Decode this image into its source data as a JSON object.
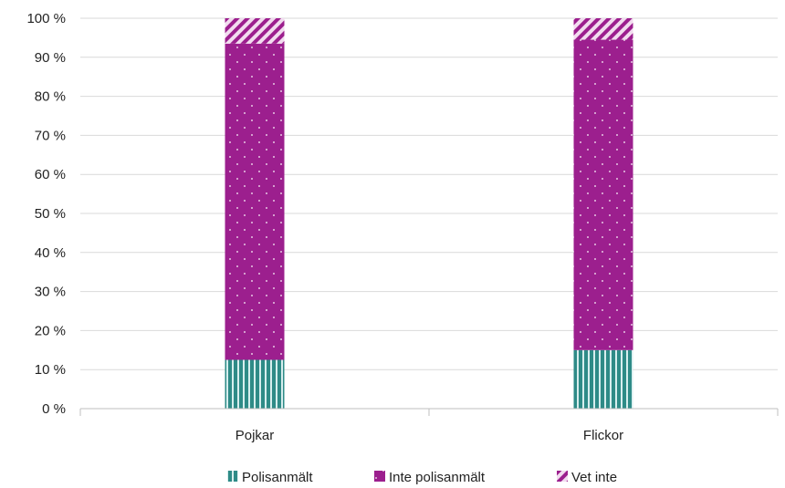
{
  "chart_data": {
    "type": "bar",
    "stacked": true,
    "percent": true,
    "categories": [
      "Pojkar",
      "Flickor"
    ],
    "series": [
      {
        "name": "Polisanmält",
        "values": [
          12.5,
          15
        ],
        "pattern": "vertical-stripes",
        "color": "#2e8b87"
      },
      {
        "name": "Inte polisanmält",
        "values": [
          81,
          79.5
        ],
        "pattern": "dotted",
        "color": "#9c1f8e"
      },
      {
        "name": "Vet inte",
        "values": [
          6.5,
          5.5
        ],
        "pattern": "diagonal-stripes",
        "color": "#9c1f8e"
      }
    ],
    "y_ticks": [
      "0 %",
      "10 %",
      "20 %",
      "30 %",
      "40 %",
      "50 %",
      "60 %",
      "70 %",
      "80 %",
      "90 %",
      "100 %"
    ],
    "ylim": [
      0,
      100
    ],
    "grid": true,
    "legend_position": "bottom",
    "title": "",
    "xlabel": "",
    "ylabel": ""
  }
}
